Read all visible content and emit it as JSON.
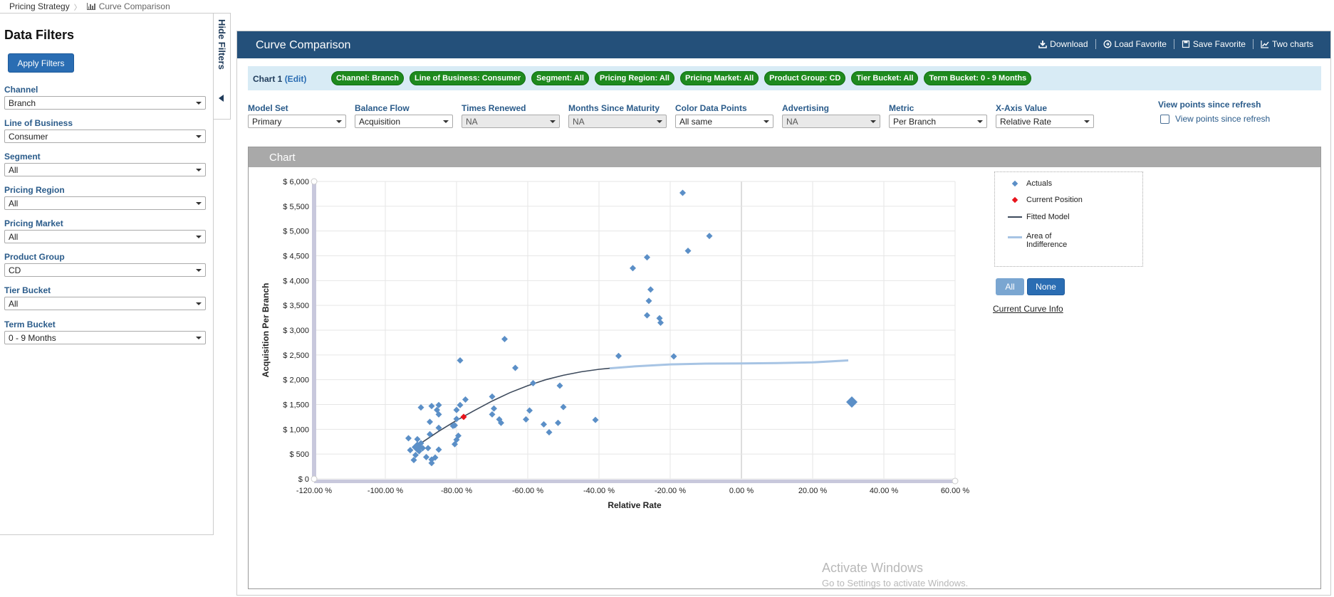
{
  "breadcrumb": {
    "item1": "Pricing Strategy",
    "item2": "Curve Comparison"
  },
  "sidebar": {
    "title": "Data Filters",
    "apply_label": "Apply Filters",
    "hide_label": "Hide Filters",
    "filters": [
      {
        "label": "Channel",
        "value": "Branch"
      },
      {
        "label": "Line of Business",
        "value": "Consumer"
      },
      {
        "label": "Segment",
        "value": "All"
      },
      {
        "label": "Pricing Region",
        "value": "All"
      },
      {
        "label": "Pricing Market",
        "value": "All"
      },
      {
        "label": "Product Group",
        "value": "CD"
      },
      {
        "label": "Tier Bucket",
        "value": "All"
      },
      {
        "label": "Term Bucket",
        "value": "0 - 9 Months"
      }
    ]
  },
  "header": {
    "title": "Curve Comparison",
    "download": "Download",
    "load_favorite": "Load Favorite",
    "save_favorite": "Save Favorite",
    "two_charts": "Two charts"
  },
  "chipbar": {
    "label": "Chart 1",
    "edit": "(Edit)",
    "chips": [
      "Channel: Branch",
      "Line of Business: Consumer",
      "Segment: All",
      "Pricing Region: All",
      "Pricing Market: All",
      "Product Group: CD",
      "Tier Bucket: All",
      "Term Bucket: 0 - 9 Months"
    ]
  },
  "options": [
    {
      "label": "Model Set",
      "value": "Primary",
      "disabled": false
    },
    {
      "label": "Balance Flow",
      "value": "Acquisition",
      "disabled": false
    },
    {
      "label": "Times Renewed",
      "value": "NA",
      "disabled": true
    },
    {
      "label": "Months Since Maturity",
      "value": "NA",
      "disabled": true
    },
    {
      "label": "Color Data Points",
      "value": "All same",
      "disabled": false
    },
    {
      "label": "Advertising",
      "value": "NA",
      "disabled": true
    },
    {
      "label": "Metric",
      "value": "Per Branch",
      "disabled": false
    },
    {
      "label": "X-Axis Value",
      "value": "Relative Rate",
      "disabled": false
    }
  ],
  "view_points": {
    "title": "View points since refresh",
    "checkbox_label": "View points since refresh"
  },
  "chart_panel_title": "Chart",
  "legend": {
    "actuals": "Actuals",
    "current": "Current Position",
    "fitted": "Fitted Model",
    "area": "Area of",
    "area2": "Indifference",
    "btn_all": "All",
    "btn_none": "None",
    "curve_info": "Current Curve Info"
  },
  "colors": {
    "actuals": "#5b8fc7",
    "current": "#e8141c",
    "fitted": "#3d4a5c",
    "area": "#a7c4e4",
    "chip": "#1e8a1e",
    "header": "#24507a"
  },
  "watermark": {
    "line1": "Activate Windows",
    "line2": "Go to Settings to activate Windows."
  },
  "chart_data": {
    "type": "scatter",
    "xlabel": "Relative Rate",
    "ylabel": "Acquisition Per Branch",
    "xlim": [
      -120,
      60
    ],
    "ylim": [
      0,
      6000
    ],
    "x_ticks": [
      -120,
      -100,
      -80,
      -60,
      -40,
      -20,
      0,
      20,
      40,
      60
    ],
    "x_tick_labels": [
      "-120.00 %",
      "-100.00 %",
      "-80.00 %",
      "-60.00 %",
      "-40.00 %",
      "-20.00 %",
      "0.00 %",
      "20.00 %",
      "40.00 %",
      "60.00 %"
    ],
    "y_ticks": [
      0,
      500,
      1000,
      1500,
      2000,
      2500,
      3000,
      3500,
      4000,
      4500,
      5000,
      5500,
      6000
    ],
    "y_tick_labels": [
      "$ 0",
      "$ 500",
      "$ 1,000",
      "$ 1,500",
      "$ 2,000",
      "$ 2,500",
      "$ 3,000",
      "$ 3,500",
      "$ 4,000",
      "$ 4,500",
      "$ 5,000",
      "$ 5,500",
      "$ 6,000"
    ],
    "series": [
      {
        "name": "Actuals",
        "points": [
          [
            -16.5,
            5770
          ],
          [
            -9,
            4900
          ],
          [
            -15,
            4600
          ],
          [
            -26.5,
            4470
          ],
          [
            -30.5,
            4250
          ],
          [
            -25.5,
            3820
          ],
          [
            -26,
            3590
          ],
          [
            -26.5,
            3300
          ],
          [
            -23,
            3240
          ],
          [
            -22.7,
            3150
          ],
          [
            -19,
            2470
          ],
          [
            -34.5,
            2480
          ],
          [
            -66.5,
            2820
          ],
          [
            -79,
            2390
          ],
          [
            -63.5,
            2240
          ],
          [
            -58.5,
            1930
          ],
          [
            -70,
            1660
          ],
          [
            -51,
            1880
          ],
          [
            -69.5,
            1420
          ],
          [
            -70,
            1300
          ],
          [
            -68,
            1200
          ],
          [
            -67.5,
            1130
          ],
          [
            -59.5,
            1380
          ],
          [
            -60.5,
            1200
          ],
          [
            -55.5,
            1100
          ],
          [
            -54,
            940
          ],
          [
            -51.5,
            1130
          ],
          [
            -50,
            1450
          ],
          [
            -41,
            1190
          ],
          [
            -77.5,
            1600
          ],
          [
            -79,
            1490
          ],
          [
            -80,
            1390
          ],
          [
            -80,
            1210
          ],
          [
            -80.5,
            1080
          ],
          [
            -81,
            1070
          ],
          [
            -79.5,
            870
          ],
          [
            -80,
            790
          ],
          [
            -80.5,
            700
          ],
          [
            -85,
            1490
          ],
          [
            -85.5,
            1390
          ],
          [
            -85,
            1300
          ],
          [
            -85,
            1030
          ],
          [
            -87,
            1470
          ],
          [
            -87.5,
            1150
          ],
          [
            -87.5,
            900
          ],
          [
            -85,
            590
          ],
          [
            -86,
            430
          ],
          [
            -87,
            390
          ],
          [
            -88,
            620
          ],
          [
            -88.5,
            440
          ],
          [
            -87,
            320
          ],
          [
            -90,
            1440
          ],
          [
            -91,
            800
          ],
          [
            -89.5,
            620
          ],
          [
            -90,
            720
          ],
          [
            -90.5,
            560
          ],
          [
            -91.5,
            480
          ],
          [
            -92,
            380
          ],
          [
            -93,
            580
          ],
          [
            -93.5,
            820
          ]
        ]
      },
      {
        "name": "Current Position",
        "points": [
          [
            -78,
            1250
          ]
        ]
      },
      {
        "name": "Fitted Model",
        "points": [
          [
            -90,
            720
          ],
          [
            -85,
            960
          ],
          [
            -80,
            1180
          ],
          [
            -75,
            1380
          ],
          [
            -70,
            1570
          ],
          [
            -65,
            1740
          ],
          [
            -60,
            1880
          ],
          [
            -55,
            2000
          ],
          [
            -50,
            2090
          ],
          [
            -45,
            2160
          ],
          [
            -40,
            2210
          ],
          [
            -37,
            2230
          ]
        ]
      },
      {
        "name": "Area of Indifference",
        "points": [
          [
            -37,
            2230
          ],
          [
            -30,
            2270
          ],
          [
            -20,
            2310
          ],
          [
            -10,
            2325
          ],
          [
            0,
            2330
          ],
          [
            10,
            2335
          ],
          [
            20,
            2350
          ],
          [
            30,
            2390
          ]
        ]
      }
    ],
    "large_points": [
      [
        -91,
        640
      ],
      [
        31,
        1550
      ]
    ],
    "grid": true,
    "legend_position": "right"
  }
}
